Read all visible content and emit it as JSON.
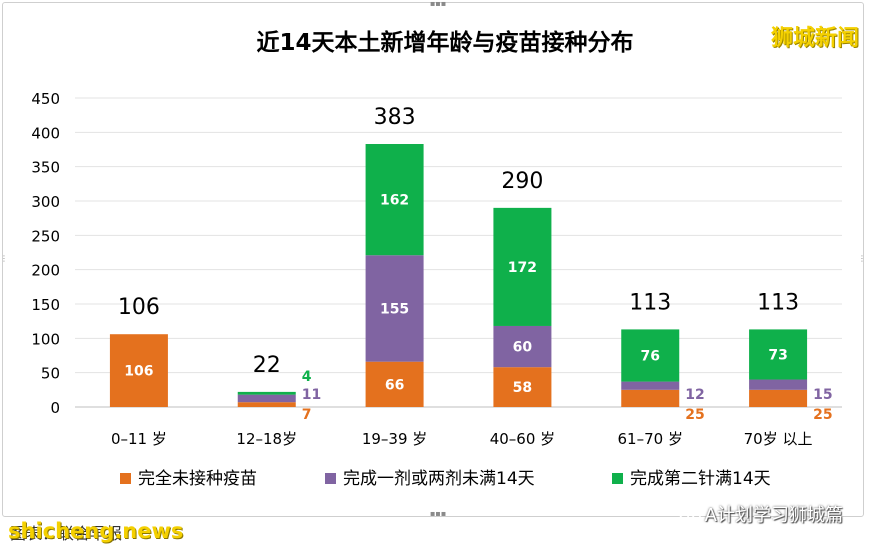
{
  "brand_label": "狮城新闻",
  "credit_text": "图表：联合早报",
  "watermark_text": "shicheng.news",
  "wechat_label": "A计划学习狮城篇",
  "colors": {
    "unvaccinated": "#e4711e",
    "partial": "#8064a2",
    "full": "#0fb04b",
    "grid": "#e3e3e3",
    "text": "#000000"
  },
  "chart_data": {
    "type": "bar",
    "stacked": true,
    "title": "近14天本土新增年龄与疫苗接种分布",
    "categories": [
      "0–11 岁",
      "12–18岁",
      "19–39 岁",
      "40–60 岁",
      "61–70 岁",
      "70岁 以上"
    ],
    "series": [
      {
        "name": "完全未接种疫苗",
        "values": [
          106,
          7,
          66,
          58,
          25,
          25
        ]
      },
      {
        "name": "完成一剂或两剂未满14天",
        "values": [
          0,
          11,
          155,
          60,
          12,
          15
        ]
      },
      {
        "name": "完成第二针满14天",
        "values": [
          0,
          4,
          162,
          172,
          76,
          73
        ]
      }
    ],
    "totals": [
      106,
      22,
      383,
      290,
      113,
      113
    ],
    "ylim": [
      0,
      450
    ],
    "yticks": [
      0,
      50,
      100,
      150,
      200,
      250,
      300,
      350,
      400,
      450
    ],
    "grid": true,
    "legend_position": "bottom"
  }
}
